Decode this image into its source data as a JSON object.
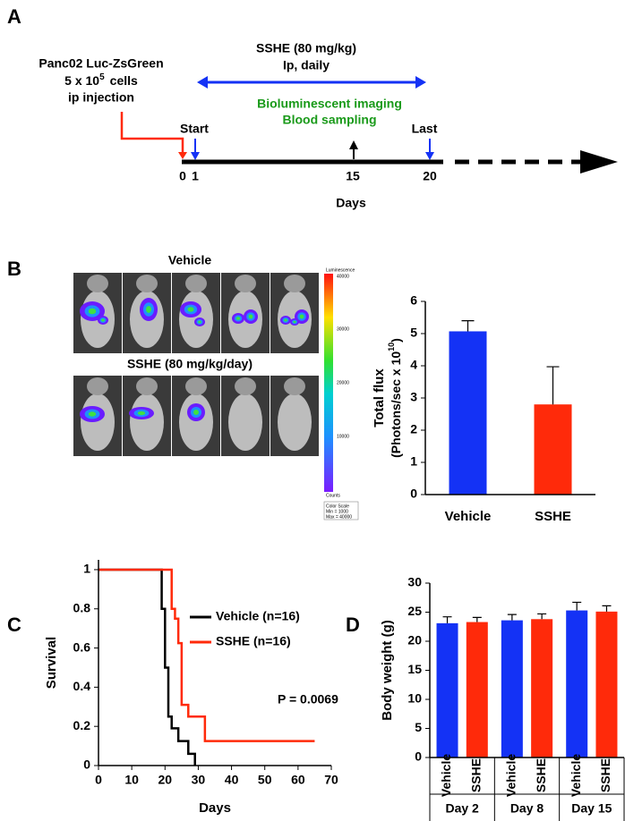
{
  "panel_labels": [
    "A",
    "B",
    "C",
    "D"
  ],
  "timeline": {
    "treatment": [
      "SSHE (80 mg/kg)",
      "Ip, daily"
    ],
    "injection_line1": "Panc02 Luc-ZsGreen",
    "injection_cells_base": "5 x 10",
    "injection_cells_exp": "5",
    "injection_cells_unit": "cells",
    "injection_line3": "ip injection",
    "assays": [
      "Bioluminescent imaging",
      "Blood sampling"
    ],
    "start": "Start",
    "last": "Last",
    "day_labels": [
      "0",
      "1",
      "15",
      "20"
    ],
    "axis_label": "Days"
  },
  "imaging": {
    "groups": [
      "Vehicle",
      "SSHE (80 mg/kg/day)"
    ],
    "scale_title": "Luminescence",
    "scale_ticks": [
      "40000",
      "30000",
      "20000",
      "10000"
    ],
    "scale_unit": "Counts",
    "scale_note": [
      "Color Scale",
      "Min = 1000",
      "Max = 40000"
    ]
  },
  "chart_data": [
    {
      "type": "bar",
      "ylabel": "Total flux",
      "ylabel2_base": "(Photons/sec x 10",
      "ylabel2_exp": "10",
      "ylabel2_end": ")",
      "categories": [
        "Vehicle",
        "SSHE"
      ],
      "values": [
        5.07,
        2.8
      ],
      "errors": [
        0.33,
        1.17
      ],
      "colors": [
        "#1432f5",
        "#ff2a0a"
      ],
      "ylim": [
        0,
        6
      ],
      "yticks": [
        0,
        1,
        2,
        3,
        4,
        5,
        6
      ]
    },
    {
      "type": "line",
      "step": true,
      "xlabel": "Days",
      "ylabel": "Survival",
      "annotation": "P = 0.0069",
      "xlim": [
        0,
        70
      ],
      "xticks": [
        0,
        10,
        20,
        30,
        40,
        50,
        60,
        70
      ],
      "ylim": [
        0,
        1.05
      ],
      "yticks": [
        0,
        0.2,
        0.4,
        0.6,
        0.8,
        1
      ],
      "series": [
        {
          "name": "Vehicle (n=16)",
          "color": "#000000",
          "x": [
            0,
            19,
            20,
            21,
            22,
            24,
            27,
            29
          ],
          "values": [
            1,
            0.8,
            0.5,
            0.25,
            0.19,
            0.125,
            0.06,
            0
          ]
        },
        {
          "name": "SSHE (n=16)",
          "color": "#ff2a0a",
          "x": [
            0,
            22,
            23,
            24,
            25,
            27,
            32,
            65
          ],
          "values": [
            1,
            0.8,
            0.75,
            0.625,
            0.31,
            0.25,
            0.125,
            0.125
          ]
        }
      ]
    },
    {
      "type": "grouped_bar",
      "ylabel": "Body weight (g)",
      "categories": [
        "Day 2",
        "Day 8",
        "Day 15"
      ],
      "ylim": [
        0,
        30
      ],
      "yticks": [
        0,
        5,
        10,
        15,
        20,
        25,
        30
      ],
      "series": [
        {
          "name": "Vehicle",
          "color": "#1432f5",
          "values": [
            23.1,
            23.6,
            25.3
          ],
          "errors": [
            1.1,
            1.0,
            1.4
          ]
        },
        {
          "name": "SSHE",
          "color": "#ff2a0a",
          "values": [
            23.3,
            23.8,
            25.1
          ],
          "errors": [
            0.8,
            0.9,
            1.0
          ]
        }
      ]
    }
  ]
}
